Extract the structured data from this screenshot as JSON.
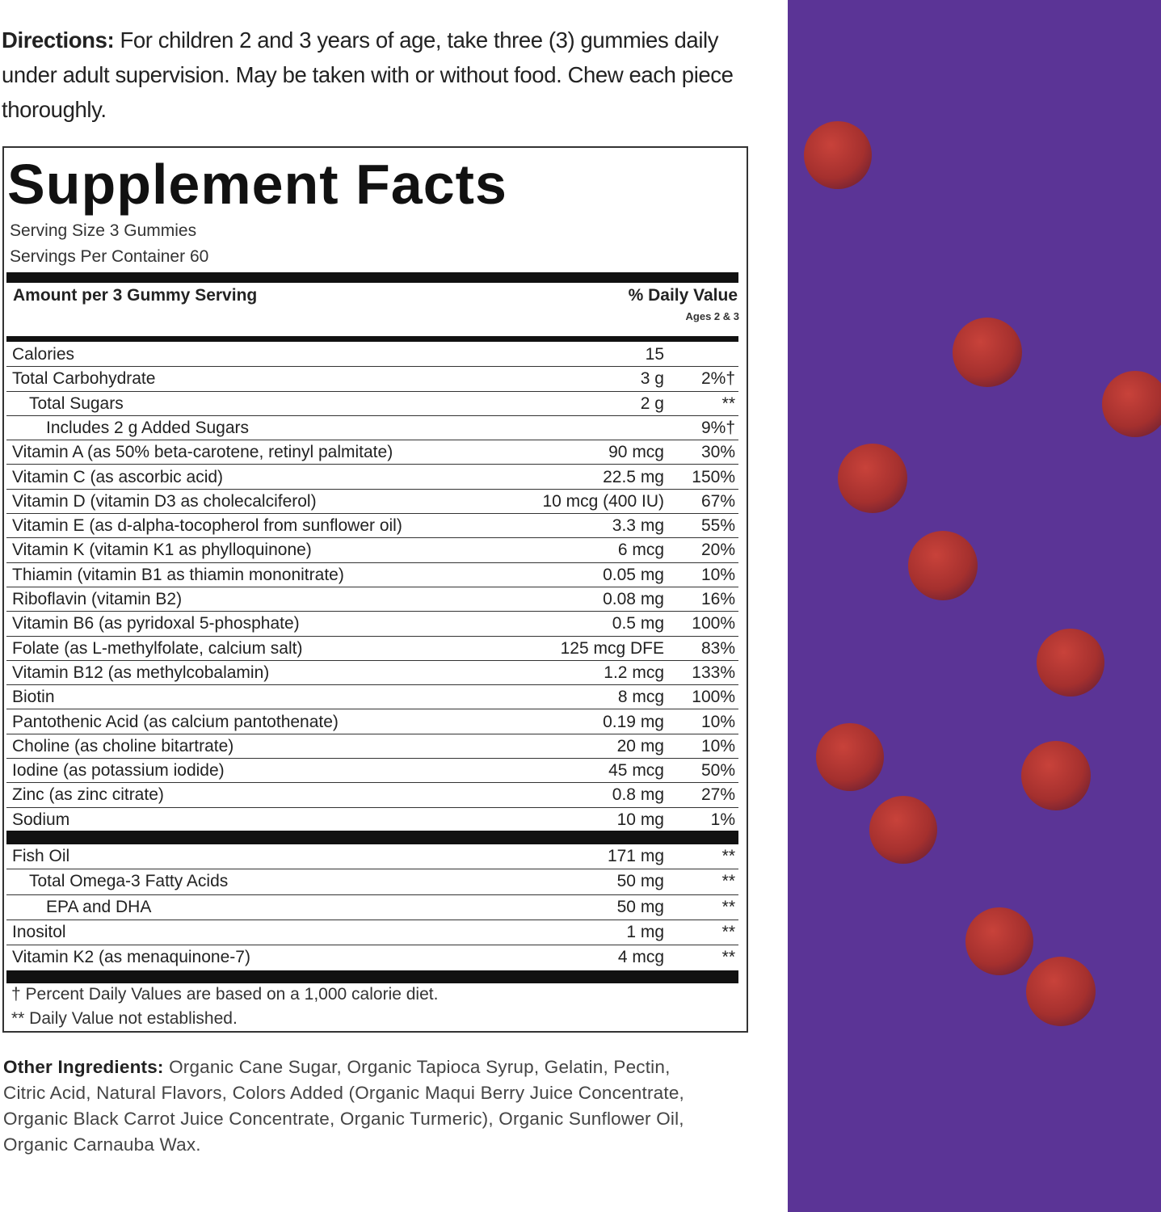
{
  "directions": {
    "label": "Directions:",
    "text": "For children 2 and 3 years of age, take three (3) gummies daily under adult supervision. May be taken with or without food. Chew each piece thoroughly."
  },
  "supplement_facts": {
    "title": "Supplement Facts",
    "serving_size": "Serving Size 3 Gummies",
    "servings_per_container": "Servings Per Container 60",
    "amount_header": "Amount per 3 Gummy Serving",
    "dv_header": "% Daily Value",
    "dv_subheader": "Ages 2 & 3",
    "rows": [
      [
        "Calories",
        "15",
        null
      ],
      [
        "Total Carbohydrate",
        "3 g",
        "2%†"
      ],
      [
        "Total Sugars",
        "2 g",
        "**"
      ],
      [
        "Includes 2 g Added Sugars",
        null,
        "9%†"
      ],
      [
        "Vitamin A (as 50% beta-carotene, retinyl palmitate)",
        "90 mcg",
        "30%"
      ],
      [
        "Vitamin C (as ascorbic acid)",
        "22.5 mg",
        "150%"
      ],
      [
        "Vitamin D (vitamin D3 as cholecalciferol)",
        "10 mcg (400 IU)",
        "67%"
      ],
      [
        "Vitamin E (as d-alpha-tocopherol from sunflower oil)",
        "3.3 mg",
        "55%"
      ],
      [
        "Vitamin K (vitamin K1 as phylloquinone)",
        "6 mcg",
        "20%"
      ],
      [
        "Thiamin (vitamin B1 as thiamin mononitrate)",
        "0.05 mg",
        "10%"
      ],
      [
        "Riboflavin (vitamin B2)",
        "0.08 mg",
        "16%"
      ],
      [
        "Vitamin B6 (as pyridoxal 5-phosphate)",
        "0.5 mg",
        "100%"
      ],
      [
        "Folate (as L-methylfolate, calcium salt)",
        "125 mcg DFE",
        "83%"
      ],
      [
        "Vitamin B12 (as methylcobalamin)",
        "1.2 mcg",
        "133%"
      ],
      [
        "Biotin",
        "8 mcg",
        "100%"
      ],
      [
        "Pantothenic Acid (as calcium pantothenate)",
        "0.19 mg",
        "10%"
      ],
      [
        "Choline (as choline bitartrate)",
        "20 mg",
        "10%"
      ],
      [
        "Iodine (as potassium iodide)",
        "45 mcg",
        "50%"
      ],
      [
        "Zinc (as zinc citrate)",
        "0.8 mg",
        "27%"
      ],
      [
        "Sodium",
        "10 mg",
        "1%"
      ]
    ],
    "rows2": [
      [
        "Fish Oil",
        "171 mg",
        "**"
      ],
      [
        "Total Omega-3 Fatty Acids",
        "50 mg",
        "**"
      ],
      [
        "EPA and DHA",
        "50 mg",
        "**"
      ],
      [
        "Inositol",
        "1 mg",
        "**"
      ],
      [
        "Vitamin K2 (as menaquinone-7)",
        "4 mcg",
        "**"
      ]
    ],
    "footnotes": [
      "† Percent Daily Values are based on a 1,000 calorie diet.",
      "** Daily Value not established."
    ]
  },
  "other_ingredients": {
    "label": "Other Ingredients:",
    "text": "Organic Cane Sugar, Organic Tapioca Syrup, Gelatin, Pectin, Citric Acid, Natural Flavors, Colors Added (Organic Maqui Berry Juice Concentrate, Organic Black Carrot Juice Concentrate, Organic Turmeric), Organic Sunflower Oil, Organic Carnauba Wax."
  }
}
